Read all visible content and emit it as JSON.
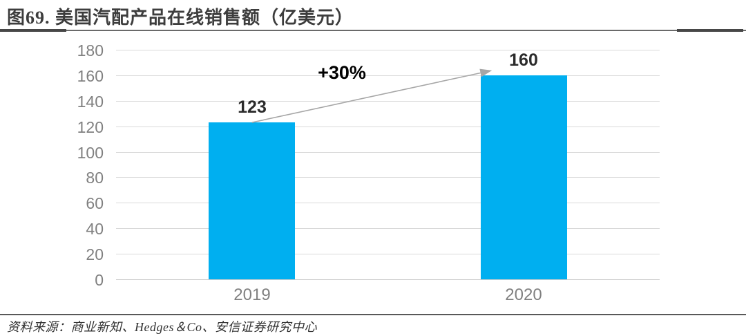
{
  "figure": {
    "title": "图69. 美国汽配产品在线销售额（亿美元）",
    "source_note": "资料来源：商业新知、Hedges＆Co、安信证券研究中心"
  },
  "chart_data": {
    "type": "bar",
    "title": "图69. 美国汽配产品在线销售额（亿美元）",
    "categories": [
      "2019",
      "2020"
    ],
    "values": [
      123,
      160
    ],
    "data_labels": [
      "123",
      "160"
    ],
    "annotation": "+30%",
    "xlabel": "",
    "ylabel": "",
    "ylim": [
      0,
      180
    ],
    "ytick_interval": 20,
    "yticks": [
      0,
      20,
      40,
      60,
      80,
      100,
      120,
      140,
      160,
      180
    ],
    "grid": true,
    "legend_position": "none",
    "bar_color": "#00AFF0"
  },
  "colors": {
    "bar": "#00AFF0",
    "gridline": "#D9D9D9",
    "axis_text": "#808080",
    "data_label": "#2B2B2B",
    "annotation_text": "#000000",
    "arrow": "#A6A6A6",
    "rule": "#595959"
  }
}
